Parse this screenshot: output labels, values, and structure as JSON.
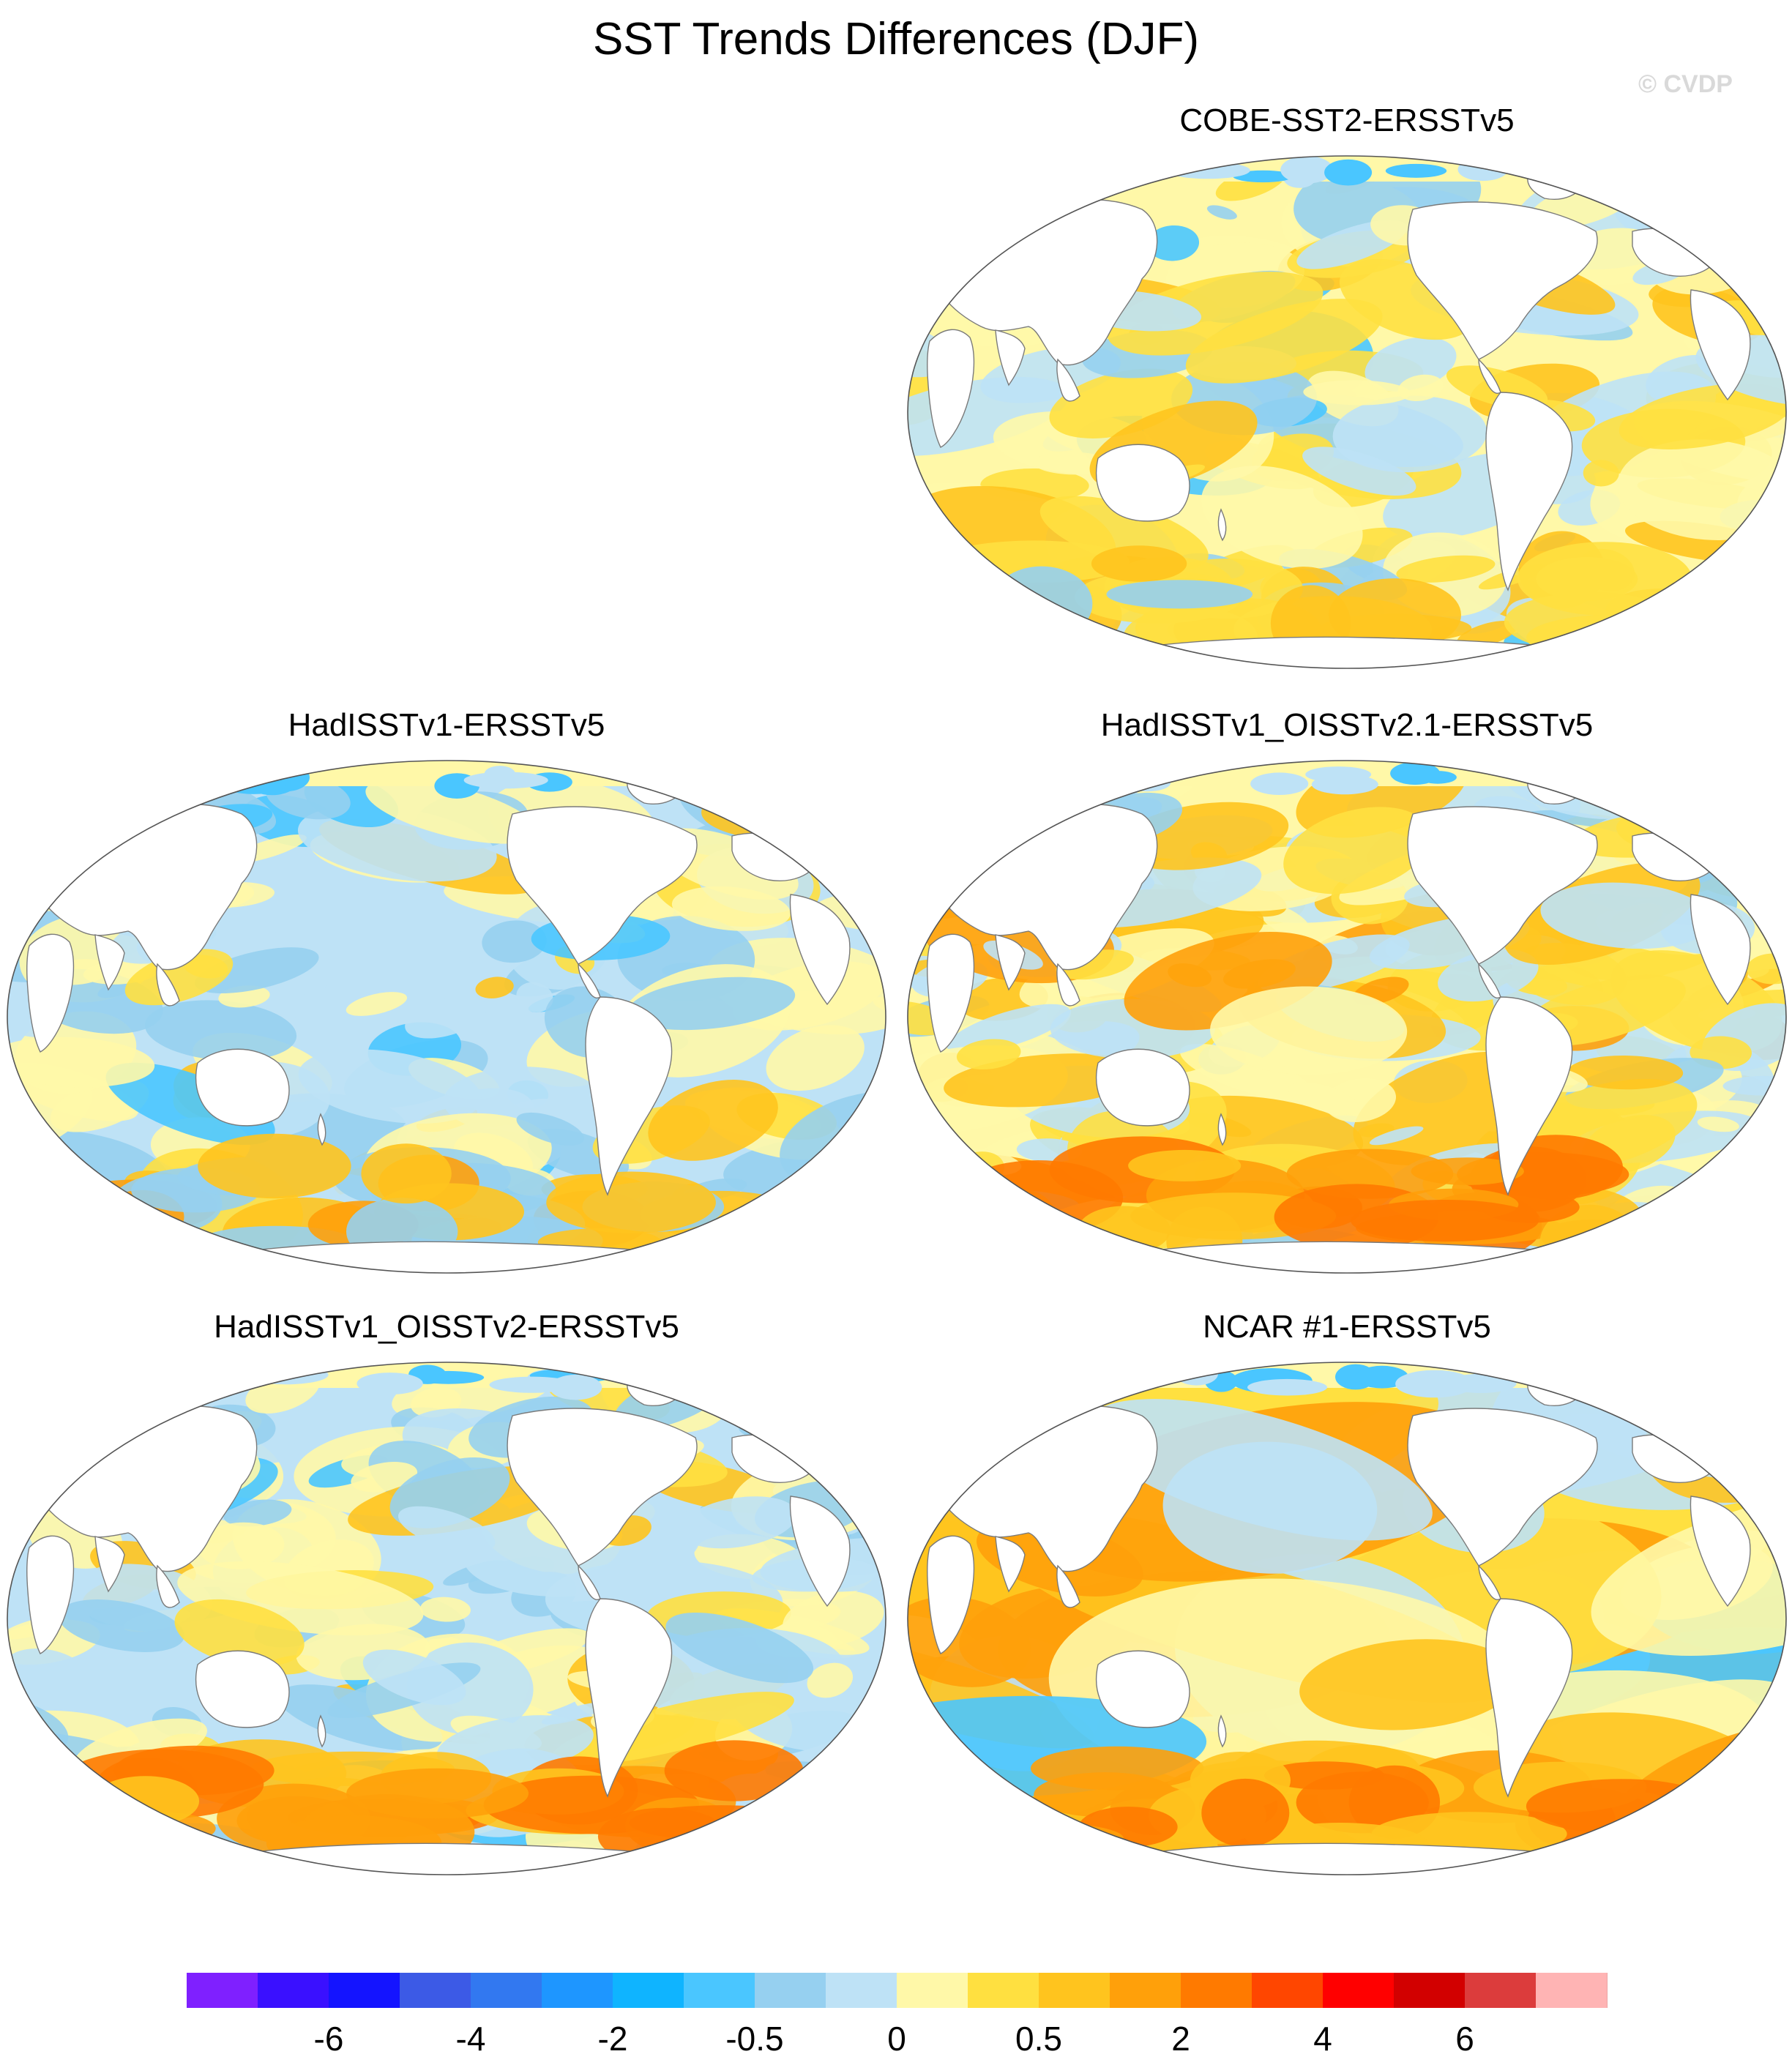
{
  "title": "SST Trends Differences (DJF)",
  "watermark": "© CVDP",
  "panels": [
    {
      "id": "cobe",
      "title": "COBE-SST2-ERSSTv5",
      "pattern": "mixed"
    },
    {
      "id": "hadi1",
      "title": "HadISSTv1-ERSSTv5",
      "pattern": "cool"
    },
    {
      "id": "hadi21",
      "title": "HadISSTv1_OISSTv2.1-ERSSTv5",
      "pattern": "warm-noisy"
    },
    {
      "id": "hadi2",
      "title": "HadISSTv1_OISSTv2-ERSSTv5",
      "pattern": "mixed-south-warm"
    },
    {
      "id": "ncar",
      "title": "NCAR #1-ERSSTv5",
      "pattern": "strong-warm"
    }
  ],
  "colorbar": {
    "colors": [
      "#7f20ff",
      "#3a10ff",
      "#1414ff",
      "#3c5ae6",
      "#3278f0",
      "#1e96ff",
      "#0fb4ff",
      "#4ac6ff",
      "#96d0f0",
      "#bee2f6",
      "#fff8a8",
      "#ffe040",
      "#ffc41e",
      "#ffa00a",
      "#ff7a00",
      "#ff4600",
      "#ff0000",
      "#d20000",
      "#dc3c3c",
      "#ffb4b4"
    ],
    "labels": [
      "-6",
      "-4",
      "-2",
      "-0.5",
      "0",
      "0.5",
      "2",
      "4",
      "6"
    ]
  }
}
